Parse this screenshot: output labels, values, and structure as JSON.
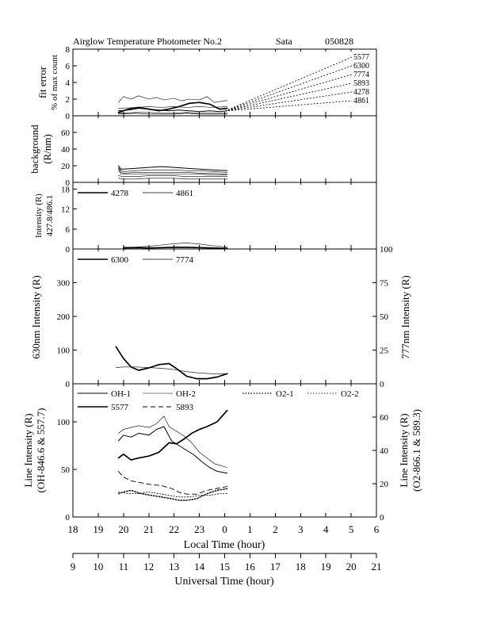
{
  "title": {
    "instrument": "Airglow Temperature Photometer No.2",
    "station": "Sata",
    "date": "050828"
  },
  "x_axes": {
    "local_time": {
      "label": "Local Time (hour)",
      "ticks": [
        "18",
        "19",
        "20",
        "21",
        "22",
        "23",
        "0",
        "1",
        "2",
        "3",
        "4",
        "5",
        "6"
      ]
    },
    "universal_time": {
      "label": "Universal Time (hour)",
      "ticks": [
        "9",
        "10",
        "11",
        "12",
        "13",
        "14",
        "15",
        "16",
        "17",
        "18",
        "19",
        "20",
        "21"
      ]
    }
  },
  "chart_data": [
    {
      "type": "line",
      "panel": "fit-error",
      "ylabel": [
        "fit error",
        "% of max count"
      ],
      "ylim": [
        0,
        8
      ],
      "yticks": [
        "0",
        "2",
        "4",
        "6",
        "8"
      ],
      "x_unit": "UT hour",
      "legend": [
        "5577",
        "6300",
        "7774",
        "5893",
        "4278",
        "4861"
      ],
      "series": [
        {
          "name": "7774",
          "style": "thin",
          "x": [
            10.8,
            11,
            11.3,
            11.6,
            12,
            12.3,
            12.6,
            13,
            13.3,
            13.6,
            14,
            14.3,
            14.6,
            15,
            15.1
          ],
          "y": [
            1.6,
            2.3,
            2.0,
            2.4,
            2.0,
            2.2,
            1.9,
            2.1,
            1.8,
            2.0,
            1.9,
            2.3,
            1.6,
            1.8,
            1.8
          ]
        },
        {
          "name": "5577",
          "style": "thick",
          "x": [
            10.8,
            11.2,
            11.6,
            12,
            12.4,
            12.8,
            13.2,
            13.6,
            14,
            14.4,
            14.8,
            15.1
          ],
          "y": [
            0.4,
            0.8,
            1.0,
            0.8,
            0.6,
            0.8,
            1.1,
            1.5,
            1.6,
            1.4,
            0.8,
            0.9
          ]
        },
        {
          "name": "6300",
          "style": "medium",
          "x": [
            10.8,
            11.2,
            11.6,
            12,
            12.4,
            12.8,
            13.2,
            13.6,
            14,
            14.4,
            14.8,
            15.1
          ],
          "y": [
            0.6,
            0.7,
            0.9,
            0.8,
            0.7,
            0.6,
            0.7,
            0.6,
            0.5,
            0.6,
            0.5,
            0.6
          ]
        },
        {
          "name": "5893",
          "style": "thin",
          "x": [
            10.8,
            11.5,
            12,
            12.5,
            13,
            13.5,
            14,
            14.5,
            15.1
          ],
          "y": [
            0.9,
            1.0,
            1.1,
            1.0,
            1.1,
            1.0,
            1.1,
            1.0,
            1.1
          ]
        },
        {
          "name": "4278",
          "style": "thin",
          "x": [
            10.8,
            11.5,
            12,
            12.5,
            13,
            13.5,
            14,
            14.5,
            15.1
          ],
          "y": [
            0.3,
            0.4,
            0.4,
            0.3,
            0.3,
            0.4,
            0.3,
            0.3,
            0.3
          ]
        },
        {
          "name": "4861",
          "style": "thin",
          "x": [
            10.8,
            11.5,
            12,
            12.5,
            13,
            13.5,
            14,
            14.5,
            15.1
          ],
          "y": [
            0.2,
            0.3,
            0.2,
            0.2,
            0.2,
            0.3,
            0.2,
            0.2,
            0.2
          ]
        }
      ]
    },
    {
      "type": "line",
      "panel": "background",
      "ylabel": [
        "background",
        "(R/nm)"
      ],
      "ylim": [
        0,
        80
      ],
      "yticks": [
        "0",
        "20",
        "40",
        "60"
      ],
      "x_unit": "UT hour",
      "series": [
        {
          "style": "medium",
          "x": [
            10.8,
            10.9,
            11,
            11.5,
            12,
            12.5,
            13,
            13.5,
            14,
            14.5,
            15.1
          ],
          "y": [
            20,
            16,
            16,
            17,
            18,
            19,
            18,
            17,
            16,
            15,
            14
          ]
        },
        {
          "style": "thin",
          "x": [
            10.8,
            10.9,
            11,
            11.5,
            12,
            12.5,
            13,
            13.5,
            14,
            14.5,
            15.1
          ],
          "y": [
            18,
            14,
            13,
            14,
            15,
            15,
            15,
            14,
            14,
            13,
            12
          ]
        },
        {
          "style": "thin",
          "x": [
            10.8,
            10.9,
            11,
            11.5,
            12,
            12.5,
            13,
            13.5,
            14,
            14.5,
            15.1
          ],
          "y": [
            17,
            12,
            11,
            12,
            12,
            12,
            12,
            12,
            11,
            11,
            10
          ]
        },
        {
          "style": "thin",
          "x": [
            10.8,
            10.9,
            11,
            11.5,
            12,
            12.5,
            13,
            13.5,
            14,
            14.5,
            15.1
          ],
          "y": [
            15,
            10,
            10,
            10,
            10,
            10,
            10,
            10,
            10,
            9,
            9
          ]
        },
        {
          "style": "thin",
          "x": [
            10.8,
            11,
            11.5,
            12,
            12.5,
            13,
            13.5,
            14,
            14.5,
            15.1
          ],
          "y": [
            8,
            7,
            7,
            8,
            8,
            8,
            7,
            7,
            7,
            7
          ]
        },
        {
          "style": "thin",
          "x": [
            10.8,
            11,
            11.5,
            12,
            12.5,
            13,
            13.5,
            14,
            14.5,
            15.1
          ],
          "y": [
            5,
            4,
            4,
            5,
            5,
            5,
            4,
            4,
            4,
            4
          ]
        }
      ]
    },
    {
      "type": "line",
      "panel": "blue-lines",
      "ylabel": [
        "Intensity (R)",
        "427.8/486.1"
      ],
      "ylim": [
        0,
        20
      ],
      "yticks": [
        "0",
        "6",
        "12",
        "18"
      ],
      "x_unit": "UT hour",
      "legend": [
        "4278",
        "4861"
      ],
      "series": [
        {
          "name": "4278",
          "style": "thick",
          "x": [
            11,
            11.5,
            12,
            12.5,
            13,
            13.5,
            14,
            14.5,
            15.1
          ],
          "y": [
            0.3,
            0.4,
            0.3,
            0.4,
            0.5,
            0.5,
            0.4,
            0.3,
            0.2
          ]
        },
        {
          "name": "4861",
          "style": "thin",
          "x": [
            11,
            11.5,
            12,
            12.5,
            13,
            13.5,
            14,
            14.5,
            15.1
          ],
          "y": [
            0.5,
            0.6,
            0.8,
            1.2,
            1.6,
            1.8,
            1.5,
            1.0,
            0.6
          ]
        }
      ]
    },
    {
      "type": "line",
      "panel": "630-777",
      "ylabel": "630nm Intensity (R)",
      "ylim": [
        0,
        400
      ],
      "yticks": [
        "0",
        "100",
        "200",
        "300"
      ],
      "y2label": "777nm Intensity (R)",
      "y2lim": [
        0,
        100
      ],
      "y2ticks": [
        "0",
        "25",
        "50",
        "75",
        "100"
      ],
      "x_unit": "UT hour",
      "legend": [
        "6300",
        "7774"
      ],
      "series": [
        {
          "name": "6300",
          "style": "thick",
          "axis": "left",
          "x": [
            10.7,
            11,
            11.3,
            11.6,
            12,
            12.4,
            12.8,
            13.1,
            13.5,
            13.9,
            14.3,
            14.7,
            15.1
          ],
          "y": [
            110,
            75,
            50,
            40,
            47,
            57,
            60,
            45,
            22,
            15,
            15,
            20,
            30
          ]
        },
        {
          "name": "7774",
          "style": "thin",
          "axis": "right",
          "x": [
            10.7,
            11,
            11.5,
            12,
            12.5,
            13,
            13.5,
            14,
            14.5,
            15.1
          ],
          "y": [
            12,
            12.5,
            12.5,
            12,
            11.5,
            10.5,
            9,
            8,
            7.5,
            7.5
          ]
        }
      ]
    },
    {
      "type": "line",
      "panel": "line-intensity",
      "ylabel": [
        "Line Intensity (R)",
        "(OH-846.6 & 557.7)"
      ],
      "ylim": [
        0,
        140
      ],
      "yticks": [
        "0",
        "50",
        "100"
      ],
      "y2label": [
        "Line Intensity (R)",
        "(O2-866.1 & 589.3)"
      ],
      "y2lim": [
        0,
        80
      ],
      "y2ticks": [
        "0",
        "20",
        "40",
        "60"
      ],
      "x_unit": "UT hour",
      "legend": [
        "OH-1",
        "OH-2",
        "O2-1",
        "O2-2",
        "5577",
        "5893"
      ],
      "series": [
        {
          "name": "OH-1",
          "style": "medium",
          "axis": "left",
          "x": [
            10.8,
            11,
            11.3,
            11.6,
            12,
            12.3,
            12.6,
            12.9,
            13.2,
            13.5,
            13.8,
            14.1,
            14.4,
            14.7,
            15.1
          ],
          "y": [
            80,
            86,
            84,
            88,
            86,
            92,
            95,
            80,
            75,
            70,
            65,
            58,
            52,
            48,
            46
          ]
        },
        {
          "name": "OH-2",
          "style": "thin",
          "axis": "left",
          "x": [
            10.8,
            11,
            11.3,
            11.6,
            12,
            12.3,
            12.6,
            12.8,
            13.1,
            13.4,
            13.7,
            14,
            14.3,
            14.6,
            15.1
          ],
          "y": [
            88,
            92,
            94,
            96,
            94,
            98,
            106,
            95,
            90,
            85,
            78,
            68,
            62,
            56,
            52
          ]
        },
        {
          "name": "5577",
          "style": "thick",
          "axis": "left",
          "x": [
            10.8,
            11,
            11.3,
            11.6,
            12,
            12.4,
            12.8,
            13.1,
            13.4,
            13.7,
            14,
            14.3,
            14.7,
            15.1
          ],
          "y": [
            62,
            66,
            60,
            62,
            64,
            68,
            78,
            77,
            82,
            88,
            92,
            95,
            100,
            112
          ]
        },
        {
          "name": "5893",
          "style": "dashed",
          "axis": "left",
          "x": [
            10.8,
            11,
            11.3,
            11.7,
            12.1,
            12.5,
            12.9,
            13.2,
            13.5,
            13.9,
            14.3,
            14.7,
            15.1
          ],
          "y": [
            48,
            42,
            38,
            36,
            34,
            33,
            30,
            26,
            24,
            24,
            28,
            30,
            32
          ]
        },
        {
          "name": "O2-1",
          "style": "dotted",
          "axis": "right",
          "x": [
            10.8,
            11,
            11.3,
            11.7,
            12.1,
            12.5,
            12.9,
            13.2,
            13.5,
            13.9,
            14.3,
            14.7,
            15.1
          ],
          "y": [
            14,
            15,
            16,
            14,
            13,
            12,
            11,
            10,
            10,
            11,
            14,
            16,
            17
          ]
        },
        {
          "name": "O2-2",
          "style": "dotted-thin",
          "axis": "right",
          "x": [
            10.8,
            11.2,
            11.6,
            12,
            12.4,
            12.8,
            13.2,
            13.6,
            14,
            14.4,
            14.8,
            15.1
          ],
          "y": [
            15,
            14,
            14,
            15,
            14,
            13,
            12,
            12,
            13,
            13,
            14,
            14
          ]
        }
      ]
    }
  ]
}
